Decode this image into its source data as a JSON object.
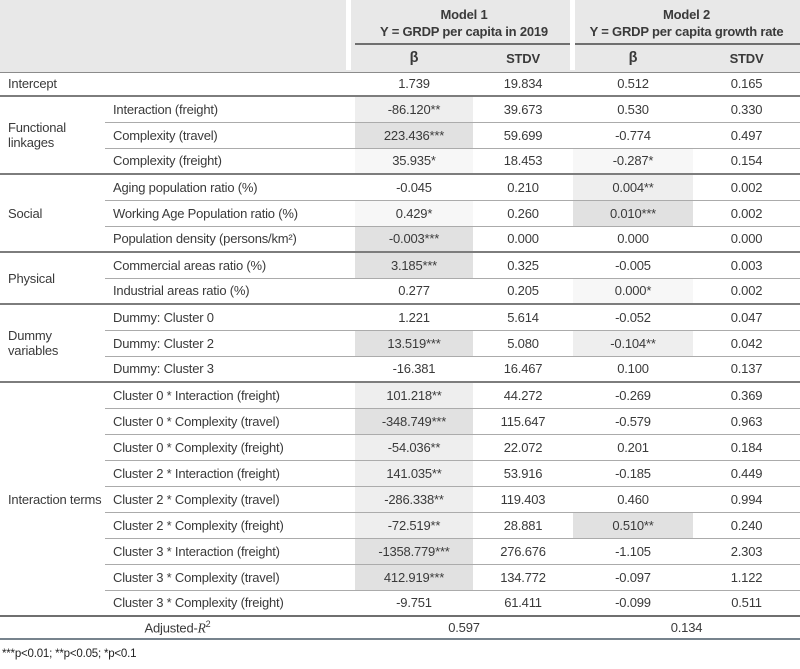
{
  "table": {
    "header": {
      "models": [
        {
          "title": "Model 1",
          "subtitle": "Y = GRDP per capita in 2019"
        },
        {
          "title": "Model 2",
          "subtitle": "Y = GRDP per capita growth rate"
        }
      ],
      "stat_columns": [
        "β",
        "STDV",
        "β",
        "STDV"
      ]
    },
    "header_bg": "#e8e8e8",
    "shade_colors": {
      "dark": "#e1e1e1",
      "medium": "#eeeeee",
      "light": "#f7f7f7"
    },
    "sections": [
      {
        "label": "",
        "rows": [
          {
            "variable": "Intercept",
            "cells": [
              {
                "text": "1.739",
                "shade": "none"
              },
              {
                "text": "19.834",
                "shade": "none"
              },
              {
                "text": "0.512",
                "shade": "none"
              },
              {
                "text": "0.165",
                "shade": "none"
              }
            ]
          }
        ]
      },
      {
        "label": "Functional linkages",
        "rows": [
          {
            "variable": "Interaction (freight)",
            "cells": [
              {
                "text": "-86.120**",
                "shade": "medium"
              },
              {
                "text": "39.673",
                "shade": "none"
              },
              {
                "text": "0.530",
                "shade": "none"
              },
              {
                "text": "0.330",
                "shade": "none"
              }
            ]
          },
          {
            "variable": "Complexity (travel)",
            "cells": [
              {
                "text": "223.436***",
                "shade": "dark"
              },
              {
                "text": "59.699",
                "shade": "none"
              },
              {
                "text": "-0.774",
                "shade": "none"
              },
              {
                "text": "0.497",
                "shade": "none"
              }
            ]
          },
          {
            "variable": "Complexity (freight)",
            "cells": [
              {
                "text": "35.935*",
                "shade": "light"
              },
              {
                "text": "18.453",
                "shade": "none"
              },
              {
                "text": "-0.287*",
                "shade": "light"
              },
              {
                "text": "0.154",
                "shade": "none"
              }
            ]
          }
        ]
      },
      {
        "label": "Social",
        "rows": [
          {
            "variable": "Aging population ratio (%)",
            "cells": [
              {
                "text": "-0.045",
                "shade": "none"
              },
              {
                "text": "0.210",
                "shade": "none"
              },
              {
                "text": "0.004**",
                "shade": "medium"
              },
              {
                "text": "0.002",
                "shade": "none"
              }
            ]
          },
          {
            "variable": "Working Age Population ratio (%)",
            "cells": [
              {
                "text": "0.429*",
                "shade": "light"
              },
              {
                "text": "0.260",
                "shade": "none"
              },
              {
                "text": "0.010***",
                "shade": "dark"
              },
              {
                "text": "0.002",
                "shade": "none"
              }
            ]
          },
          {
            "variable": "Population density (persons/km²)",
            "cells": [
              {
                "text": "-0.003***",
                "shade": "dark"
              },
              {
                "text": "0.000",
                "shade": "none"
              },
              {
                "text": "0.000",
                "shade": "none"
              },
              {
                "text": "0.000",
                "shade": "none"
              }
            ]
          }
        ]
      },
      {
        "label": "Physical",
        "rows": [
          {
            "variable": "Commercial areas ratio  (%)",
            "cells": [
              {
                "text": "3.185***",
                "shade": "dark"
              },
              {
                "text": "0.325",
                "shade": "none"
              },
              {
                "text": "-0.005",
                "shade": "none"
              },
              {
                "text": "0.003",
                "shade": "none"
              }
            ]
          },
          {
            "variable": "Industrial areas ratio (%)",
            "cells": [
              {
                "text": "0.277",
                "shade": "none"
              },
              {
                "text": "0.205",
                "shade": "none"
              },
              {
                "text": "0.000*",
                "shade": "light"
              },
              {
                "text": "0.002",
                "shade": "none"
              }
            ]
          }
        ]
      },
      {
        "label": "Dummy variables",
        "rows": [
          {
            "variable": "Dummy: Cluster 0",
            "cells": [
              {
                "text": "1.221",
                "shade": "none"
              },
              {
                "text": "5.614",
                "shade": "none"
              },
              {
                "text": "-0.052",
                "shade": "none"
              },
              {
                "text": "0.047",
                "shade": "none"
              }
            ]
          },
          {
            "variable": "Dummy: Cluster 2",
            "cells": [
              {
                "text": "13.519***",
                "shade": "dark"
              },
              {
                "text": "5.080",
                "shade": "none"
              },
              {
                "text": "-0.104**",
                "shade": "medium"
              },
              {
                "text": "0.042",
                "shade": "none"
              }
            ]
          },
          {
            "variable": "Dummy: Cluster 3",
            "cells": [
              {
                "text": "-16.381",
                "shade": "none"
              },
              {
                "text": "16.467",
                "shade": "none"
              },
              {
                "text": "0.100",
                "shade": "none"
              },
              {
                "text": "0.137",
                "shade": "none"
              }
            ]
          }
        ]
      },
      {
        "label": "Interaction terms",
        "rows": [
          {
            "variable": "Cluster 0 * Interaction (freight)",
            "cells": [
              {
                "text": "101.218**",
                "shade": "medium"
              },
              {
                "text": "44.272",
                "shade": "none"
              },
              {
                "text": "-0.269",
                "shade": "none"
              },
              {
                "text": "0.369",
                "shade": "none"
              }
            ]
          },
          {
            "variable": "Cluster 0 * Complexity (travel)",
            "cells": [
              {
                "text": "-348.749***",
                "shade": "dark"
              },
              {
                "text": "115.647",
                "shade": "none"
              },
              {
                "text": "-0.579",
                "shade": "none"
              },
              {
                "text": "0.963",
                "shade": "none"
              }
            ]
          },
          {
            "variable": "Cluster 0 * Complexity (freight)",
            "cells": [
              {
                "text": "-54.036**",
                "shade": "medium"
              },
              {
                "text": "22.072",
                "shade": "none"
              },
              {
                "text": "0.201",
                "shade": "none"
              },
              {
                "text": "0.184",
                "shade": "none"
              }
            ]
          },
          {
            "variable": "Cluster 2 * Interaction (freight)",
            "cells": [
              {
                "text": "141.035**",
                "shade": "medium"
              },
              {
                "text": "53.916",
                "shade": "none"
              },
              {
                "text": "-0.185",
                "shade": "none"
              },
              {
                "text": "0.449",
                "shade": "none"
              }
            ]
          },
          {
            "variable": "Cluster 2 * Complexity (travel)",
            "cells": [
              {
                "text": "-286.338**",
                "shade": "medium"
              },
              {
                "text": "119.403",
                "shade": "none"
              },
              {
                "text": "0.460",
                "shade": "none"
              },
              {
                "text": "0.994",
                "shade": "none"
              }
            ]
          },
          {
            "variable": "Cluster 2 * Complexity (freight)",
            "cells": [
              {
                "text": "-72.519**",
                "shade": "medium"
              },
              {
                "text": "28.881",
                "shade": "none"
              },
              {
                "text": "0.510**",
                "shade": "dark"
              },
              {
                "text": "0.240",
                "shade": "none"
              }
            ]
          },
          {
            "variable": "Cluster 3 * Interaction (freight)",
            "cells": [
              {
                "text": "-1358.779***",
                "shade": "dark"
              },
              {
                "text": "276.676",
                "shade": "none"
              },
              {
                "text": "-1.105",
                "shade": "none"
              },
              {
                "text": "2.303",
                "shade": "none"
              }
            ]
          },
          {
            "variable": "Cluster 3 * Complexity (travel)",
            "cells": [
              {
                "text": "412.919***",
                "shade": "dark"
              },
              {
                "text": "134.772",
                "shade": "none"
              },
              {
                "text": "-0.097",
                "shade": "none"
              },
              {
                "text": "1.122",
                "shade": "none"
              }
            ]
          },
          {
            "variable": "Cluster 3 * Complexity (freight)",
            "cells": [
              {
                "text": "-9.751",
                "shade": "none"
              },
              {
                "text": "61.411",
                "shade": "none"
              },
              {
                "text": "-0.099",
                "shade": "none"
              },
              {
                "text": "0.511",
                "shade": "none"
              }
            ]
          }
        ]
      }
    ],
    "footer": {
      "label_prefix": "Adjusted-",
      "label_symbol": "R",
      "label_exponent": "2",
      "model1_value": "0.597",
      "model2_value": "0.134"
    }
  },
  "note": "***p<0.01; **p<0.05; *p<0.1"
}
